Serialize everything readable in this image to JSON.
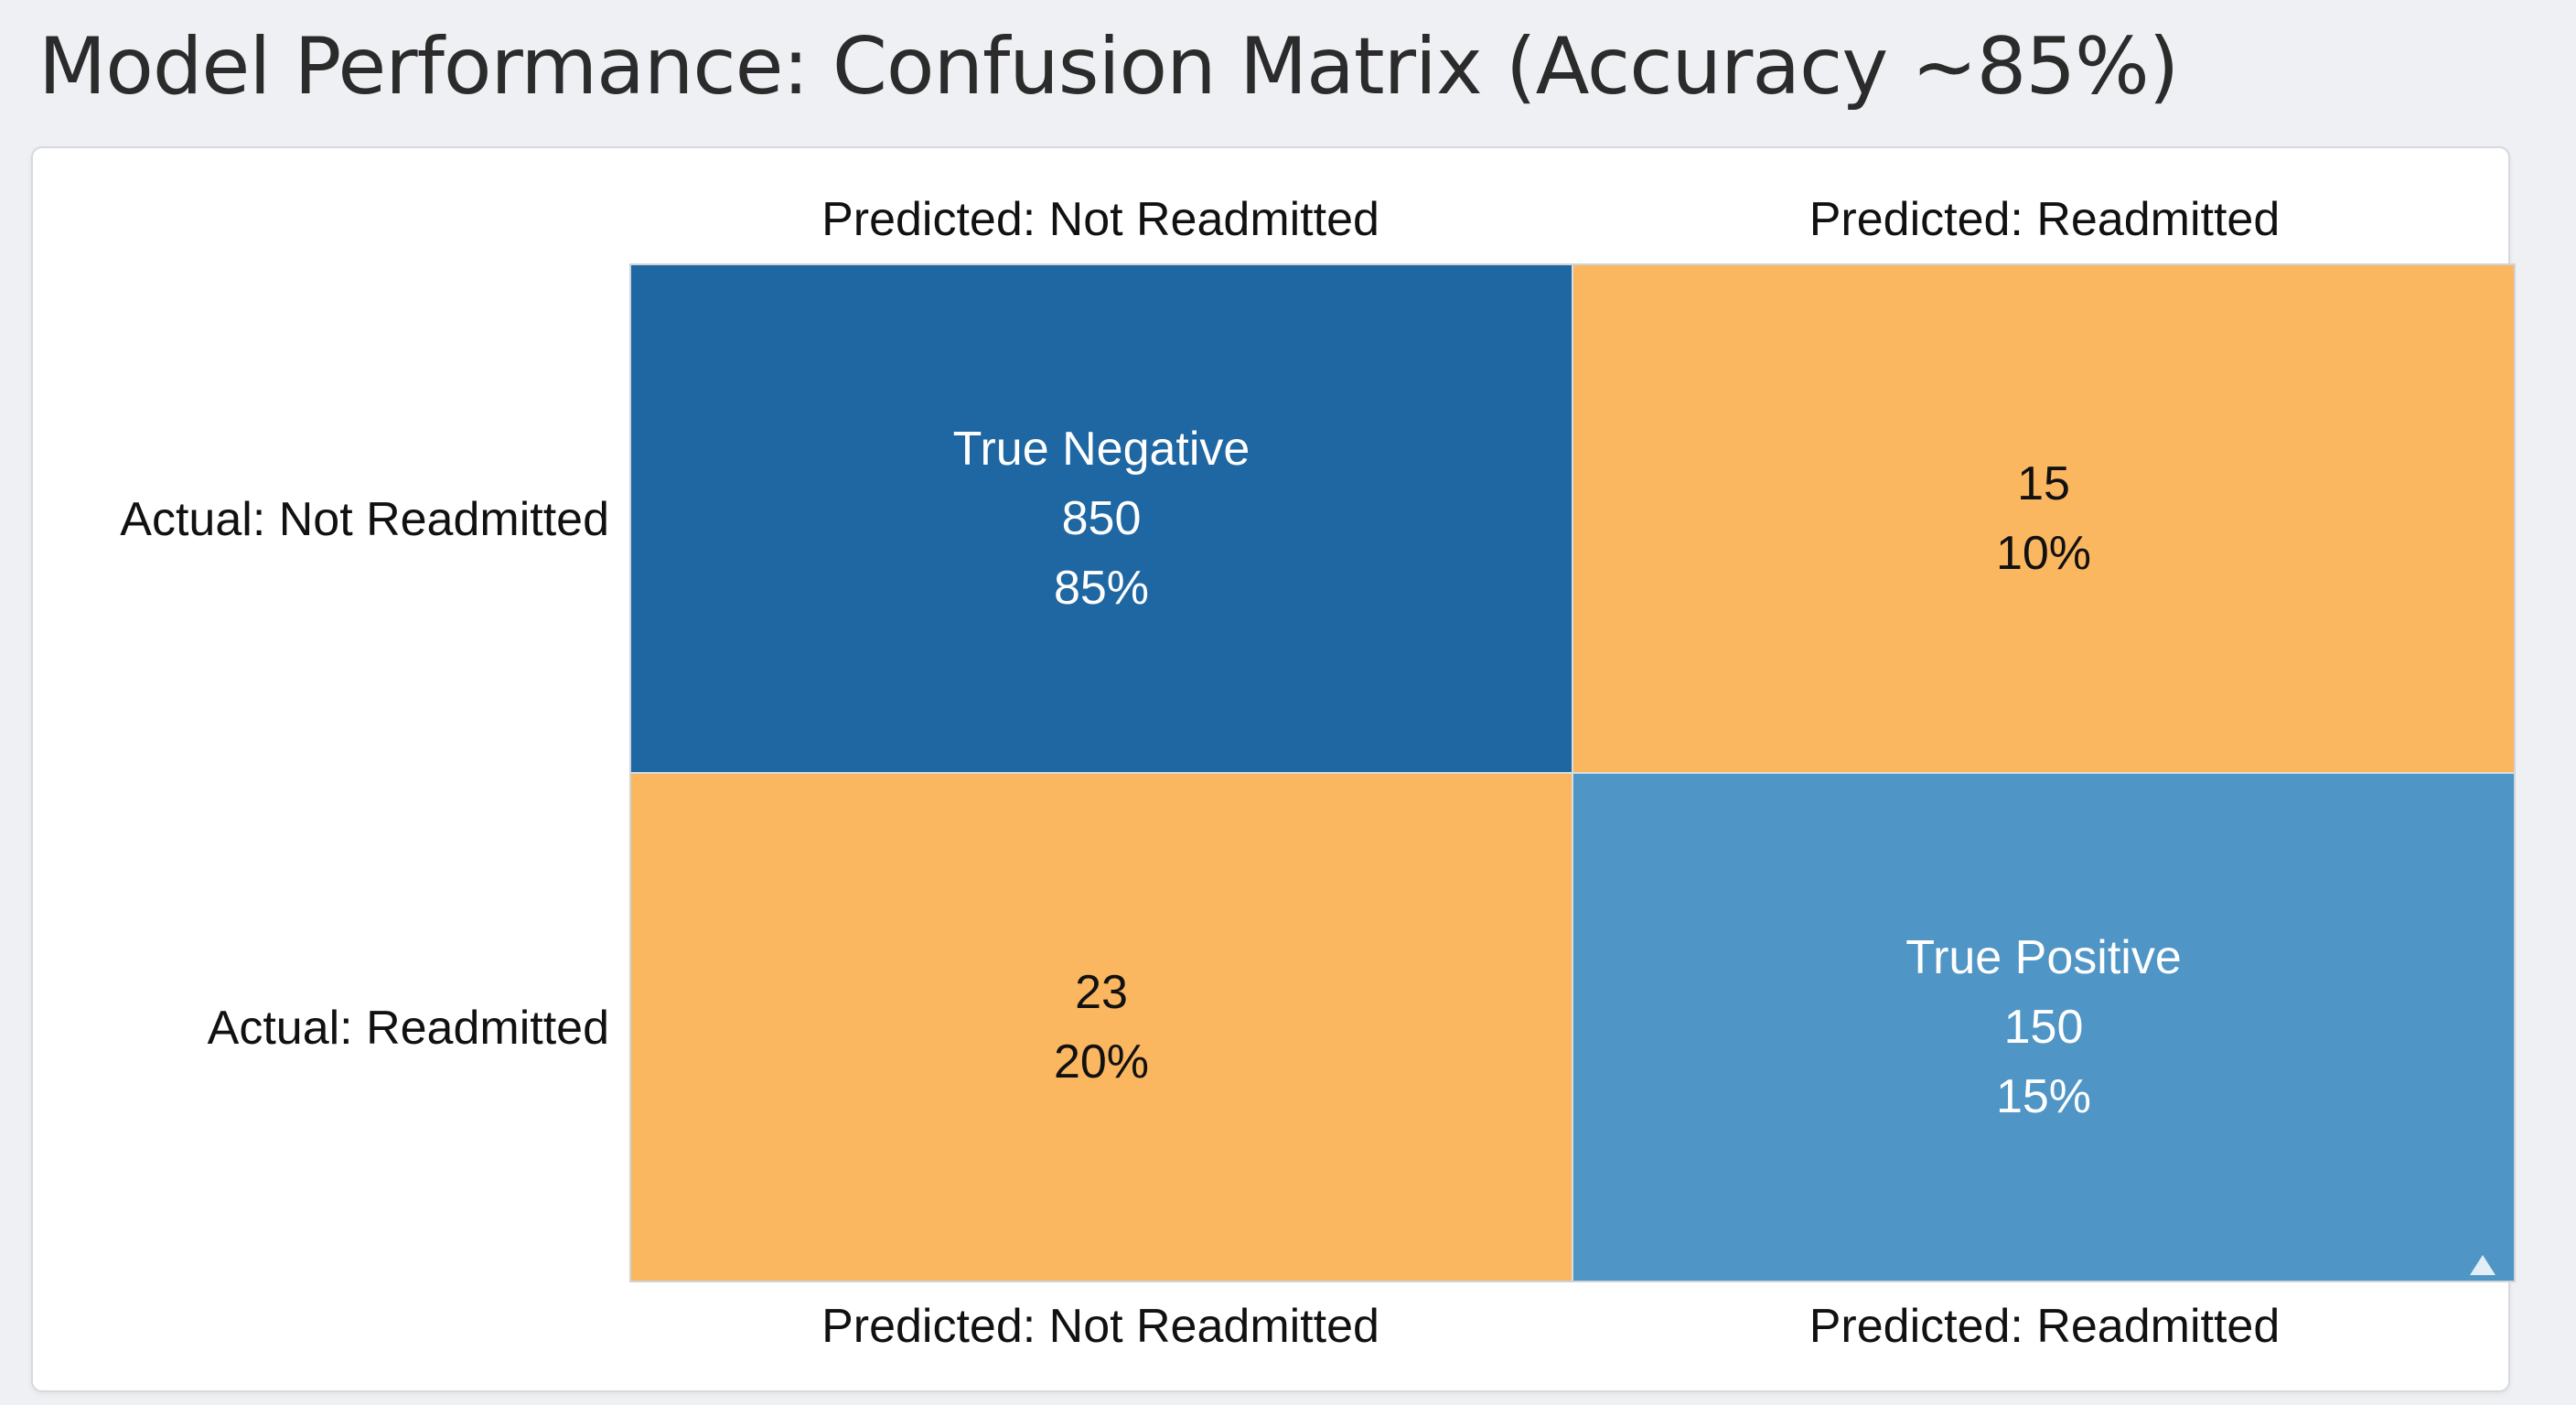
{
  "title": "Model Performance: Confusion Matrix (Accuracy ~85%)",
  "chart_data": {
    "type": "heatmap",
    "title": "Model Performance: Confusion Matrix (Accuracy ~85%)",
    "x_categories_top": [
      "Predicted: Not Readmitted",
      "Predicted: Readmitted"
    ],
    "x_categories_bottom": [
      "Predicted: Not Readmitted",
      "Predicted: Readmitted"
    ],
    "y_categories": [
      "Actual: Not Readmitted",
      "Actual: Readmitted"
    ],
    "cells": [
      {
        "row": 0,
        "col": 0,
        "label": "True Negative",
        "count": "850",
        "percent": "85%",
        "color": "#1f67a3",
        "text_color": "#ffffff"
      },
      {
        "row": 0,
        "col": 1,
        "label": "",
        "count": "15",
        "percent": "10%",
        "color": "#fbb660",
        "text_color": "#111111"
      },
      {
        "row": 1,
        "col": 0,
        "label": "",
        "count": "23",
        "percent": "20%",
        "color": "#fbb660",
        "text_color": "#111111"
      },
      {
        "row": 1,
        "col": 1,
        "label": "True Positive",
        "count": "150",
        "percent": "15%",
        "color": "#4f95c6",
        "text_color": "#ffffff"
      }
    ]
  }
}
